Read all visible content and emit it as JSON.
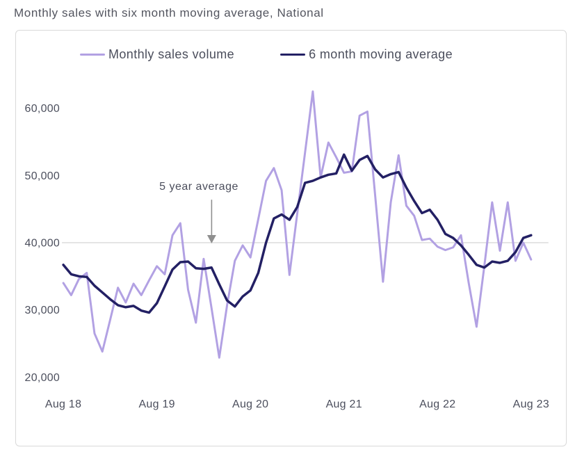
{
  "page": {
    "title": "Monthly sales with six month moving average, National"
  },
  "legend": {
    "items": [
      {
        "label": "Monthly sales volume",
        "color": "#b2a1e3"
      },
      {
        "label": "6 month moving average",
        "color": "#232064"
      }
    ]
  },
  "annotation": {
    "label": "5 year average",
    "value": 40000
  },
  "colors": {
    "background": "#ffffff",
    "border": "#d9d9d9",
    "grid_line": "#c9c9c9",
    "text": "#4b4e5c",
    "arrow": "#8f8f8f",
    "monthly_sales": "#b2a1e3",
    "moving_average": "#232064"
  },
  "chart_data": {
    "type": "line",
    "title": "Monthly sales with six month moving average, National",
    "xlabel": "",
    "ylabel": "",
    "x_unit": "month",
    "n_points": 61,
    "x_ticks": [
      {
        "index": 0,
        "label": "Aug 18"
      },
      {
        "index": 12,
        "label": "Aug 19"
      },
      {
        "index": 24,
        "label": "Aug 20"
      },
      {
        "index": 36,
        "label": "Aug 21"
      },
      {
        "index": 48,
        "label": "Aug 22"
      },
      {
        "index": 60,
        "label": "Aug 23"
      }
    ],
    "y_ticks": [
      20000,
      30000,
      40000,
      50000,
      60000
    ],
    "y_tick_labels": [
      "20,000",
      "30,000",
      "40,000",
      "50,000",
      "60,000"
    ],
    "ylim": [
      20000,
      63000
    ],
    "grid": "single horizontal reference line at 40,000",
    "legend_position": "top",
    "reference_line": {
      "label": "5 year average",
      "value": 40000
    },
    "series": [
      {
        "name": "Monthly sales volume",
        "color": "#b2a1e3",
        "width": 3,
        "values": [
          34000,
          32200,
          34600,
          35500,
          26500,
          23800,
          28500,
          33300,
          31100,
          33900,
          32200,
          34400,
          36500,
          35300,
          41100,
          42900,
          33000,
          28100,
          37600,
          30300,
          22900,
          30700,
          37300,
          39600,
          37800,
          43500,
          49200,
          51100,
          47800,
          35200,
          44300,
          53400,
          62500,
          49700,
          54900,
          52700,
          50400,
          50600,
          58900,
          59500,
          47000,
          34200,
          46000,
          53000,
          45500,
          44000,
          40400,
          40600,
          39400,
          38900,
          39300,
          41100,
          34000,
          27500,
          36500,
          46000,
          38800,
          46000,
          37300,
          40000,
          37500
        ]
      },
      {
        "name": "6 month moving average",
        "color": "#232064",
        "width": 3.5,
        "values": [
          36700,
          35300,
          35000,
          34900,
          33600,
          32600,
          31600,
          30700,
          30400,
          30600,
          29900,
          29600,
          31000,
          33500,
          36000,
          37100,
          37200,
          36200,
          36100,
          36300,
          33800,
          31400,
          30500,
          32000,
          32900,
          35500,
          40000,
          43600,
          44200,
          43400,
          45300,
          48900,
          49200,
          49700,
          50100,
          50300,
          53100,
          50700,
          52300,
          52900,
          50900,
          49700,
          50200,
          50500,
          48200,
          46200,
          44400,
          44900,
          43400,
          41300,
          40700,
          39600,
          38200,
          36700,
          36300,
          37200,
          37000,
          37300,
          38600,
          40700,
          41100
        ]
      }
    ]
  }
}
